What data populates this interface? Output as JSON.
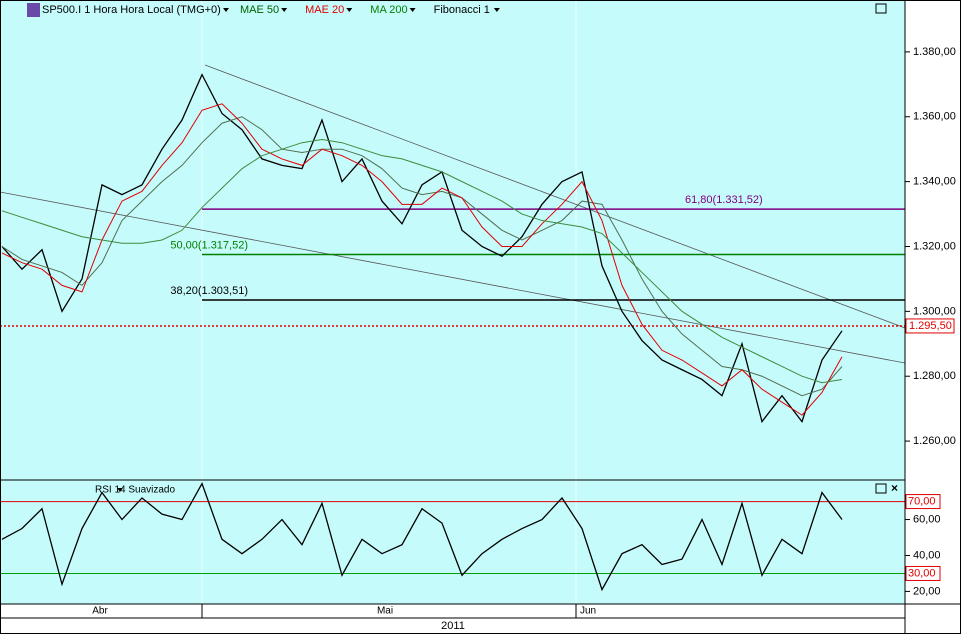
{
  "chart_data": [
    {
      "type": "line",
      "title": "SP500.I 1 Hora Hora Local (TMG+0)",
      "series": [
        {
          "color": "#000000",
          "values": [
            1320,
            1313,
            1319,
            1300,
            1310,
            1339,
            1336,
            1339,
            1350,
            1359,
            1373,
            1361,
            1356,
            1347,
            1345,
            1344,
            1359,
            1340,
            1347,
            1334,
            1327,
            1339,
            1343,
            1325,
            1320,
            1317,
            1323,
            1333,
            1340,
            1343,
            1314,
            1300,
            1291,
            1285,
            1282,
            1279,
            1274,
            1290,
            1266,
            1274,
            1266,
            1285,
            1294
          ]
        },
        {
          "name": "MAE 50",
          "color": "#4f6f4f",
          "values": [
            1320,
            1316,
            1314,
            1312,
            1308,
            1315,
            1328,
            1334,
            1340,
            1345,
            1352,
            1358,
            1360,
            1356,
            1350,
            1349,
            1350,
            1350,
            1348,
            1344,
            1338,
            1336,
            1337,
            1335,
            1330,
            1325,
            1322,
            1325,
            1328,
            1334,
            1333,
            1322,
            1310,
            1300,
            1293,
            1288,
            1283,
            1282,
            1280,
            1277,
            1274,
            1276,
            1283
          ]
        },
        {
          "name": "MAE 20",
          "color": "#e00000",
          "values": [
            1318,
            1315,
            1313,
            1308,
            1306,
            1322,
            1334,
            1337,
            1345,
            1352,
            1362,
            1364,
            1358,
            1350,
            1347,
            1345,
            1350,
            1348,
            1345,
            1340,
            1333,
            1333,
            1338,
            1335,
            1326,
            1320,
            1320,
            1327,
            1333,
            1340,
            1328,
            1308,
            1296,
            1288,
            1285,
            1281,
            1277,
            1282,
            1276,
            1272,
            1268,
            1275,
            1286
          ]
        },
        {
          "name": "MA 200",
          "color": "#3c8c3c",
          "values": [
            1331,
            1329,
            1327,
            1325,
            1323,
            1322,
            1321,
            1321,
            1322,
            1325,
            1332,
            1338,
            1344,
            1348,
            1350,
            1352,
            1353,
            1352,
            1350,
            1348,
            1347,
            1345,
            1343,
            1340,
            1337,
            1334,
            1330,
            1328,
            1327,
            1326,
            1324,
            1318,
            1312,
            1306,
            1300,
            1296,
            1292,
            1289,
            1286,
            1283,
            1280,
            1278,
            1279
          ]
        }
      ],
      "fibonacci": {
        "name": "Fibonacci 1",
        "levels": [
          {
            "value": 1331.52,
            "label": "61,80(1.331,52)",
            "color": "#800080"
          },
          {
            "value": 1317.52,
            "label": "50,00(1.317,52)",
            "color": "#008000"
          },
          {
            "value": 1303.51,
            "label": "38,20(1.303,51)",
            "color": "#000000"
          }
        ]
      },
      "last_price": {
        "value": 1295.5,
        "label": "1.295,50",
        "color": "#e00000"
      },
      "ylim": [
        1248,
        1396
      ],
      "yticks": [
        {
          "value": 1260,
          "label": "1.260,00"
        },
        {
          "value": 1280,
          "label": "1.280,00"
        },
        {
          "value": 1300,
          "label": "1.300,00"
        },
        {
          "value": 1320,
          "label": "1.320,00"
        },
        {
          "value": 1340,
          "label": "1.340,00"
        },
        {
          "value": 1360,
          "label": "1.360,00"
        },
        {
          "value": 1380,
          "label": "1.380,00"
        }
      ],
      "months": [
        "Abr",
        "Mai",
        "Jun"
      ],
      "year": "2011"
    },
    {
      "type": "line",
      "title": "RSI 14 Suavizado",
      "series": [
        {
          "color": "#000000",
          "values": [
            49,
            55,
            66,
            24,
            55,
            75,
            60,
            72,
            63,
            60,
            80,
            49,
            41,
            49,
            60,
            46,
            69,
            29,
            49,
            41,
            46,
            66,
            58,
            29,
            41,
            49,
            55,
            60,
            72,
            55,
            21,
            41,
            46,
            35,
            38,
            60,
            35,
            69,
            29,
            49,
            41,
            75,
            60
          ]
        }
      ],
      "levels": [
        {
          "value": 70,
          "label": "70,00",
          "color": "#e00000"
        },
        {
          "value": 30,
          "label": "30,00",
          "color": "#00a000"
        }
      ],
      "ylim": [
        13,
        82
      ],
      "yticks": [
        {
          "value": 20,
          "label": "20,00"
        },
        {
          "value": 40,
          "label": "40,00"
        },
        {
          "value": 60,
          "label": "60,00"
        }
      ]
    }
  ]
}
